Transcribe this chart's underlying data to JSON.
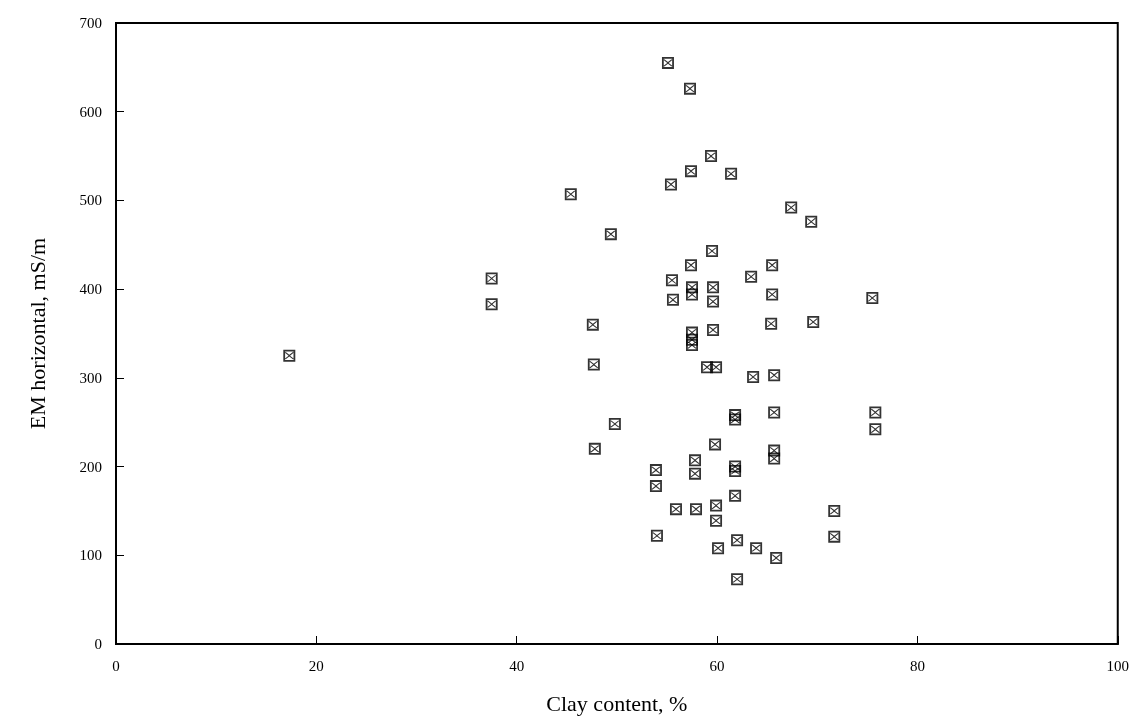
{
  "chart_data": {
    "type": "scatter",
    "xlabel": "Clay content, %",
    "ylabel": "EM horizontal, mS/m",
    "x": [
      17.3,
      37.5,
      37.5,
      55.1,
      57.3,
      59.4,
      57.4,
      61.4,
      55.4,
      45.4,
      67.4,
      69.4,
      49.4,
      59.5,
      57.4,
      65.5,
      63.4,
      55.5,
      57.5,
      59.6,
      57.5,
      55.6,
      59.6,
      65.5,
      69.6,
      47.6,
      65.4,
      57.5,
      57.5,
      59.6,
      75.5,
      57.5,
      47.7,
      59.0,
      59.9,
      63.6,
      65.7,
      61.8,
      61.8,
      65.7,
      49.8,
      59.8,
      47.8,
      65.7,
      65.7,
      53.9,
      53.9,
      57.8,
      57.8,
      61.8,
      61.8,
      61.8,
      55.9,
      57.9,
      59.9,
      59.9,
      71.7,
      71.7,
      54.0,
      62.0,
      60.1,
      63.9,
      65.9,
      62.0,
      75.8,
      75.8
    ],
    "values": [
      325,
      412,
      383,
      655,
      626,
      550,
      533,
      530,
      518,
      507,
      492,
      476,
      462,
      443,
      427,
      427,
      414,
      410,
      402,
      402,
      394,
      388,
      386,
      394,
      363,
      360,
      361,
      351,
      343,
      354,
      390,
      337,
      315,
      312,
      312,
      301,
      303,
      258,
      253,
      261,
      248,
      225,
      220,
      218,
      209,
      196,
      178,
      207,
      192,
      200,
      195,
      167,
      152,
      152,
      156,
      139,
      150,
      121,
      122,
      117,
      108,
      108,
      97,
      73,
      261,
      242
    ],
    "color": "#000000",
    "marker": "square",
    "xlim": [
      0,
      100
    ],
    "xticks": [
      0,
      20,
      40,
      60,
      80,
      100
    ],
    "ylim": [
      0,
      700
    ],
    "yticks": [
      0,
      100,
      200,
      300,
      400,
      500,
      600,
      700
    ],
    "grid": false
  }
}
